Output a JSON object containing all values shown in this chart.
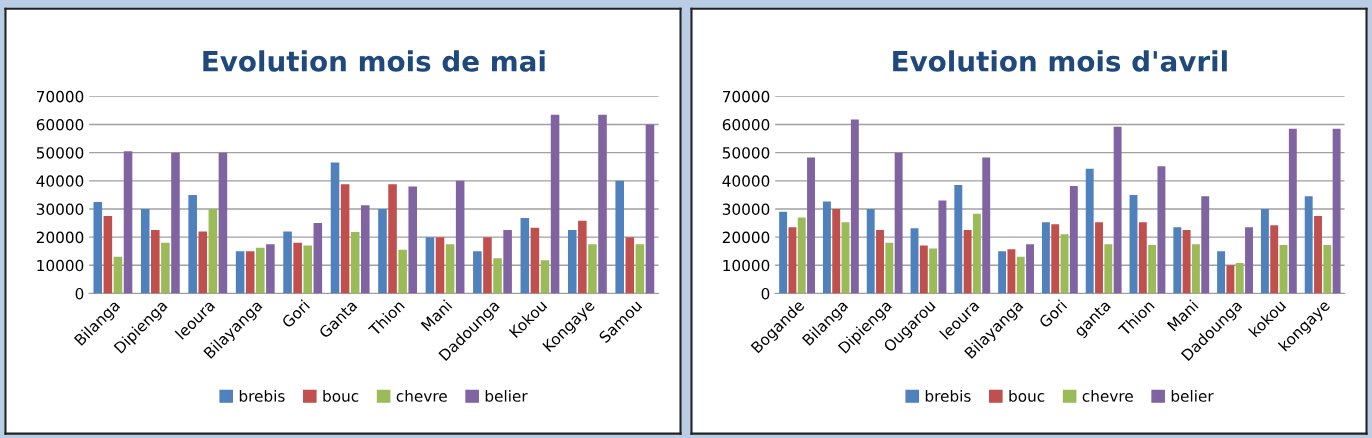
{
  "chart_data": [
    {
      "type": "bar",
      "title": "Evolution mois de mai",
      "categories": [
        "Bilanga",
        "Dipienga",
        "leoura",
        "Bilayanga",
        "Gori",
        "Ganta",
        "Thion",
        "Mani",
        "Dadounga",
        "Kokou",
        "Kongaye",
        "Samou"
      ],
      "series": [
        {
          "name": "brebis",
          "color": "#4f81bd",
          "values": [
            32500,
            30000,
            35000,
            15000,
            22000,
            46500,
            30000,
            20000,
            15000,
            26800,
            22500,
            40000
          ]
        },
        {
          "name": "bouc",
          "color": "#c0504d",
          "values": [
            27500,
            22500,
            22000,
            15000,
            18000,
            38800,
            38800,
            20000,
            20000,
            23300,
            25800,
            20000
          ]
        },
        {
          "name": "chevre",
          "color": "#9bbb59",
          "values": [
            13000,
            18000,
            30000,
            16200,
            17000,
            21800,
            15500,
            17500,
            12500,
            11800,
            17500,
            17500
          ]
        },
        {
          "name": "belier",
          "color": "#8064a2",
          "values": [
            50500,
            50000,
            50000,
            17500,
            25000,
            31300,
            38000,
            40000,
            22500,
            63500,
            63500,
            60000
          ]
        }
      ],
      "ylim": [
        0,
        70000
      ],
      "yticks": [
        0,
        10000,
        20000,
        30000,
        40000,
        50000,
        60000,
        70000
      ],
      "grid": "y",
      "legend": "bottom"
    },
    {
      "type": "bar",
      "title": "Evolution mois d'avril",
      "categories": [
        "Bogande",
        "Bilanga",
        "Dipienga",
        "Ougarou",
        "leoura",
        "Bilayanga",
        "Gori",
        "ganta",
        "Thion",
        "Mani",
        "Dadounga",
        "kokou",
        "kongaye"
      ],
      "series": [
        {
          "name": "brebis",
          "color": "#4f81bd",
          "values": [
            29000,
            32700,
            30000,
            23200,
            38500,
            15000,
            25300,
            44300,
            35000,
            23500,
            15000,
            30000,
            34500
          ]
        },
        {
          "name": "bouc",
          "color": "#c0504d",
          "values": [
            23500,
            30000,
            22500,
            17000,
            22500,
            15700,
            24600,
            25300,
            25300,
            22500,
            10000,
            24200,
            27500
          ]
        },
        {
          "name": "chevre",
          "color": "#9bbb59",
          "values": [
            27000,
            25300,
            18000,
            16000,
            28300,
            13000,
            21000,
            17500,
            17200,
            17500,
            10800,
            17200,
            17200
          ]
        },
        {
          "name": "belier",
          "color": "#8064a2",
          "values": [
            48300,
            61800,
            50000,
            33000,
            48300,
            17500,
            38200,
            59200,
            45200,
            34500,
            23500,
            58500,
            58500
          ]
        }
      ],
      "ylim": [
        0,
        70000
      ],
      "yticks": [
        0,
        10000,
        20000,
        30000,
        40000,
        50000,
        60000,
        70000
      ],
      "grid": "y",
      "legend": "bottom"
    }
  ]
}
